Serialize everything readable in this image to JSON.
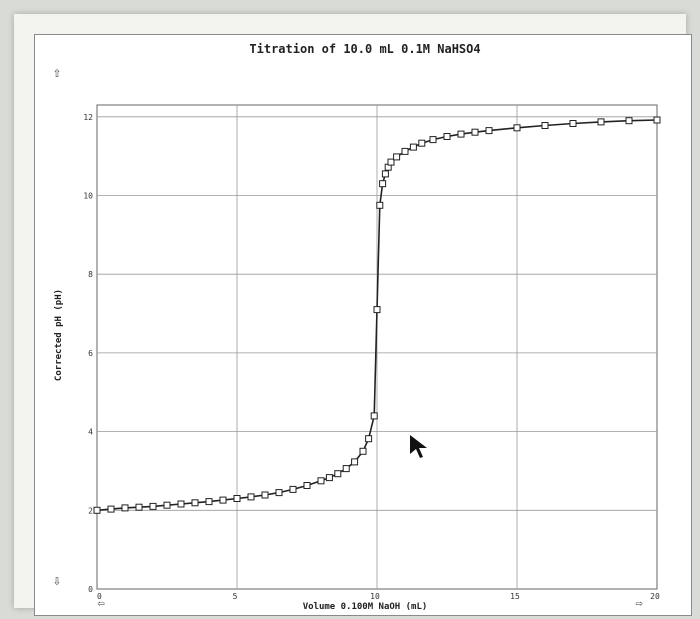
{
  "chart_data": {
    "type": "line",
    "title": "Titration of 10.0 mL 0.1M NaHSO4",
    "xlabel": "Volume 0.100M NaOH (mL)",
    "ylabel": "Corrected pH (pH)",
    "xlim": [
      0,
      20
    ],
    "ylim": [
      0,
      12.3
    ],
    "x_ticks": [
      0,
      5,
      10,
      15,
      20
    ],
    "y_ticks": [
      0,
      2,
      4,
      6,
      8,
      10,
      12
    ],
    "grid": true,
    "marker": "square",
    "series": [
      {
        "x": [
          0.0,
          0.5,
          1.0,
          1.5,
          2.0,
          2.5,
          3.0,
          3.5,
          4.0,
          4.5,
          5.0,
          5.5,
          6.0,
          6.5,
          7.0,
          7.5,
          8.0,
          8.3,
          8.6,
          8.9,
          9.2,
          9.5,
          9.7,
          9.9,
          10.0,
          10.1,
          10.2,
          10.3,
          10.4,
          10.5,
          10.7,
          11.0,
          11.3,
          11.6,
          12.0,
          12.5,
          13.0,
          13.5,
          14.0,
          15.0,
          16.0,
          17.0,
          18.0,
          19.0,
          20.0
        ],
        "y": [
          2.0,
          2.03,
          2.06,
          2.08,
          2.1,
          2.13,
          2.16,
          2.19,
          2.22,
          2.26,
          2.3,
          2.34,
          2.39,
          2.45,
          2.53,
          2.63,
          2.75,
          2.83,
          2.93,
          3.06,
          3.23,
          3.5,
          3.82,
          4.4,
          7.1,
          9.75,
          10.3,
          10.55,
          10.72,
          10.85,
          10.98,
          11.12,
          11.23,
          11.33,
          11.42,
          11.5,
          11.56,
          11.61,
          11.65,
          11.72,
          11.78,
          11.83,
          11.87,
          11.9,
          11.92
        ]
      }
    ],
    "annotations": [
      "10",
      "15",
      "20"
    ]
  },
  "ui": {
    "up_arrow": "⇧",
    "down_arrow": "⇩",
    "left_arrow": "⇦",
    "right_arrow": "⇨"
  }
}
